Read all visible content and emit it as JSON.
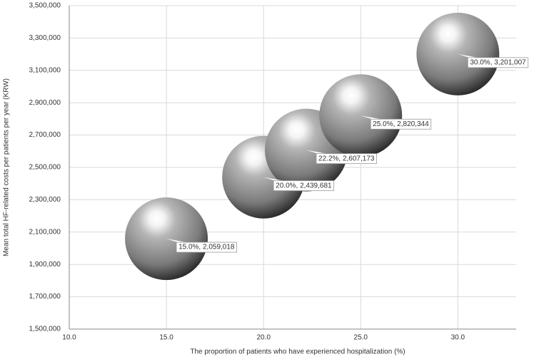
{
  "chart_data": {
    "type": "bubble",
    "x_label": "The proportion of patients who have experienced hospitalization (%)",
    "y_label": "Mean total HF-related costs per patients per year (KRW)",
    "x": [
      15.0,
      20.0,
      22.2,
      25.0,
      30.0
    ],
    "values": [
      2059018,
      2439681,
      2607173,
      2820344,
      3201007
    ],
    "value_labels": [
      "15.0%, 2,059,018",
      "20.0%, 2,439,681",
      "22.2%, 2,607,173",
      "25.0%, 2,820,344",
      "30.0%, 3,201,007"
    ],
    "color": "#8c8c8c",
    "xlim": [
      10,
      33
    ],
    "xticks": [
      {
        "value": 10,
        "label": "10.0"
      },
      {
        "value": 15,
        "label": "15.0"
      },
      {
        "value": 20,
        "label": "20.0"
      },
      {
        "value": 25,
        "label": "25.0"
      },
      {
        "value": 30,
        "label": "30.0"
      }
    ],
    "ylim": [
      1500000,
      3500000
    ],
    "yticks": [
      {
        "value": 1500000,
        "label": "1,500,000"
      },
      {
        "value": 1700000,
        "label": "1,700,000"
      },
      {
        "value": 1900000,
        "label": "1,900,000"
      },
      {
        "value": 2100000,
        "label": "2,100,000"
      },
      {
        "value": 2300000,
        "label": "2,300,000"
      },
      {
        "value": 2500000,
        "label": "2,500,000"
      },
      {
        "value": 2700000,
        "label": "2,700,000"
      },
      {
        "value": 2900000,
        "label": "2,900,000"
      },
      {
        "value": 3100000,
        "label": "3,100,000"
      },
      {
        "value": 3300000,
        "label": "3,300,000"
      },
      {
        "value": 3500000,
        "label": "3,500,000"
      }
    ],
    "grid": true
  }
}
